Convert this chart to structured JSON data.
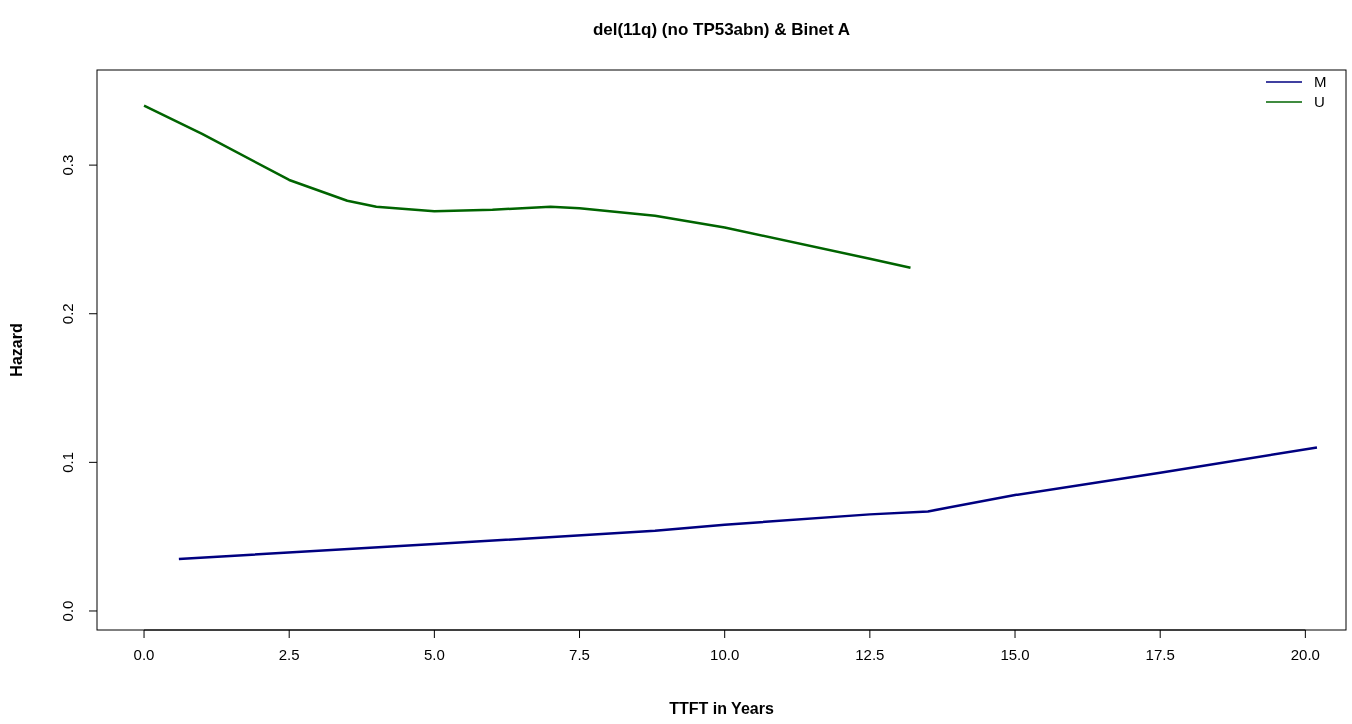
{
  "chart_data": {
    "type": "line",
    "title": "del(11q) (no TP53abn) & Binet A",
    "xlabel": "TTFT in Years",
    "ylabel": "Hazard",
    "xlim": [
      -0.81,
      20.7
    ],
    "ylim": [
      -0.0128,
      0.364
    ],
    "xticks": [
      {
        "value": 0,
        "label": "0.0"
      },
      2.5,
      {
        "value": 5,
        "label": "5.0"
      },
      7.5,
      {
        "value": 10,
        "label": "10.0"
      },
      12.5,
      {
        "value": 15,
        "label": "15.0"
      },
      17.5,
      {
        "value": 20,
        "label": "20.0"
      }
    ],
    "yticks": [
      {
        "value": 0,
        "label": "0.0"
      },
      0.1,
      0.2,
      0.3
    ],
    "legend": "top right",
    "grid": false,
    "marker": "none",
    "line_style": "solid",
    "series": [
      {
        "name": "M",
        "color": "#000080",
        "x": [
          0.6,
          5,
          8.8,
          10,
          12.5,
          13.5,
          15,
          17.5,
          20.2
        ],
        "values": [
          0.035,
          0.045,
          0.054,
          0.058,
          0.065,
          0.067,
          0.078,
          0.093,
          0.11
        ]
      },
      {
        "name": "U",
        "color": "#006400",
        "x": [
          0,
          1,
          2.5,
          3.5,
          4,
          5,
          6,
          7,
          7.5,
          8.8,
          10,
          12.5,
          13.2
        ],
        "values": [
          0.34,
          0.321,
          0.29,
          0.276,
          0.272,
          0.269,
          0.27,
          0.272,
          0.271,
          0.266,
          0.258,
          0.237,
          0.231
        ]
      }
    ]
  }
}
